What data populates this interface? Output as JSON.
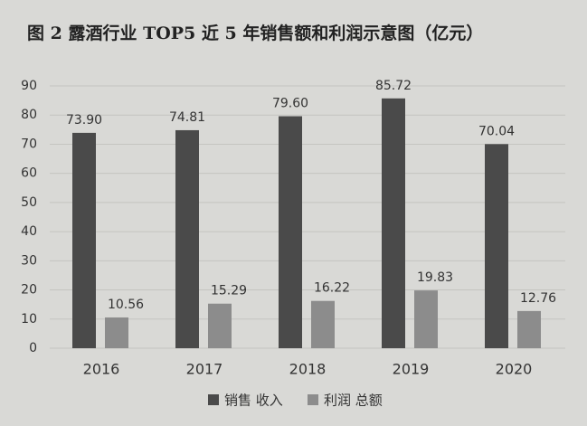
{
  "chart_data": {
    "type": "bar",
    "title": "图 2 露酒行业 TOP5 近 5 年销售额和利润示意图（亿元）",
    "categories": [
      "2016",
      "2017",
      "2018",
      "2019",
      "2020"
    ],
    "series": [
      {
        "name": "销售 收入",
        "color": "#4a4a4a",
        "values": [
          73.9,
          74.81,
          79.6,
          85.72,
          70.04
        ],
        "value_labels": [
          "73.90",
          "74.81",
          "79.60",
          "85.72",
          "70.04"
        ]
      },
      {
        "name": "利润 总额",
        "color": "#8c8c8c",
        "values": [
          10.56,
          15.29,
          16.22,
          19.83,
          12.76
        ],
        "value_labels": [
          "10.56",
          "15.29",
          "16.22",
          "19.83",
          "12.76"
        ]
      }
    ],
    "ylim": [
      0,
      90
    ],
    "yticks": [
      0,
      10,
      20,
      30,
      40,
      50,
      60,
      70,
      80,
      90
    ],
    "grid": true,
    "legend": "bottom"
  }
}
